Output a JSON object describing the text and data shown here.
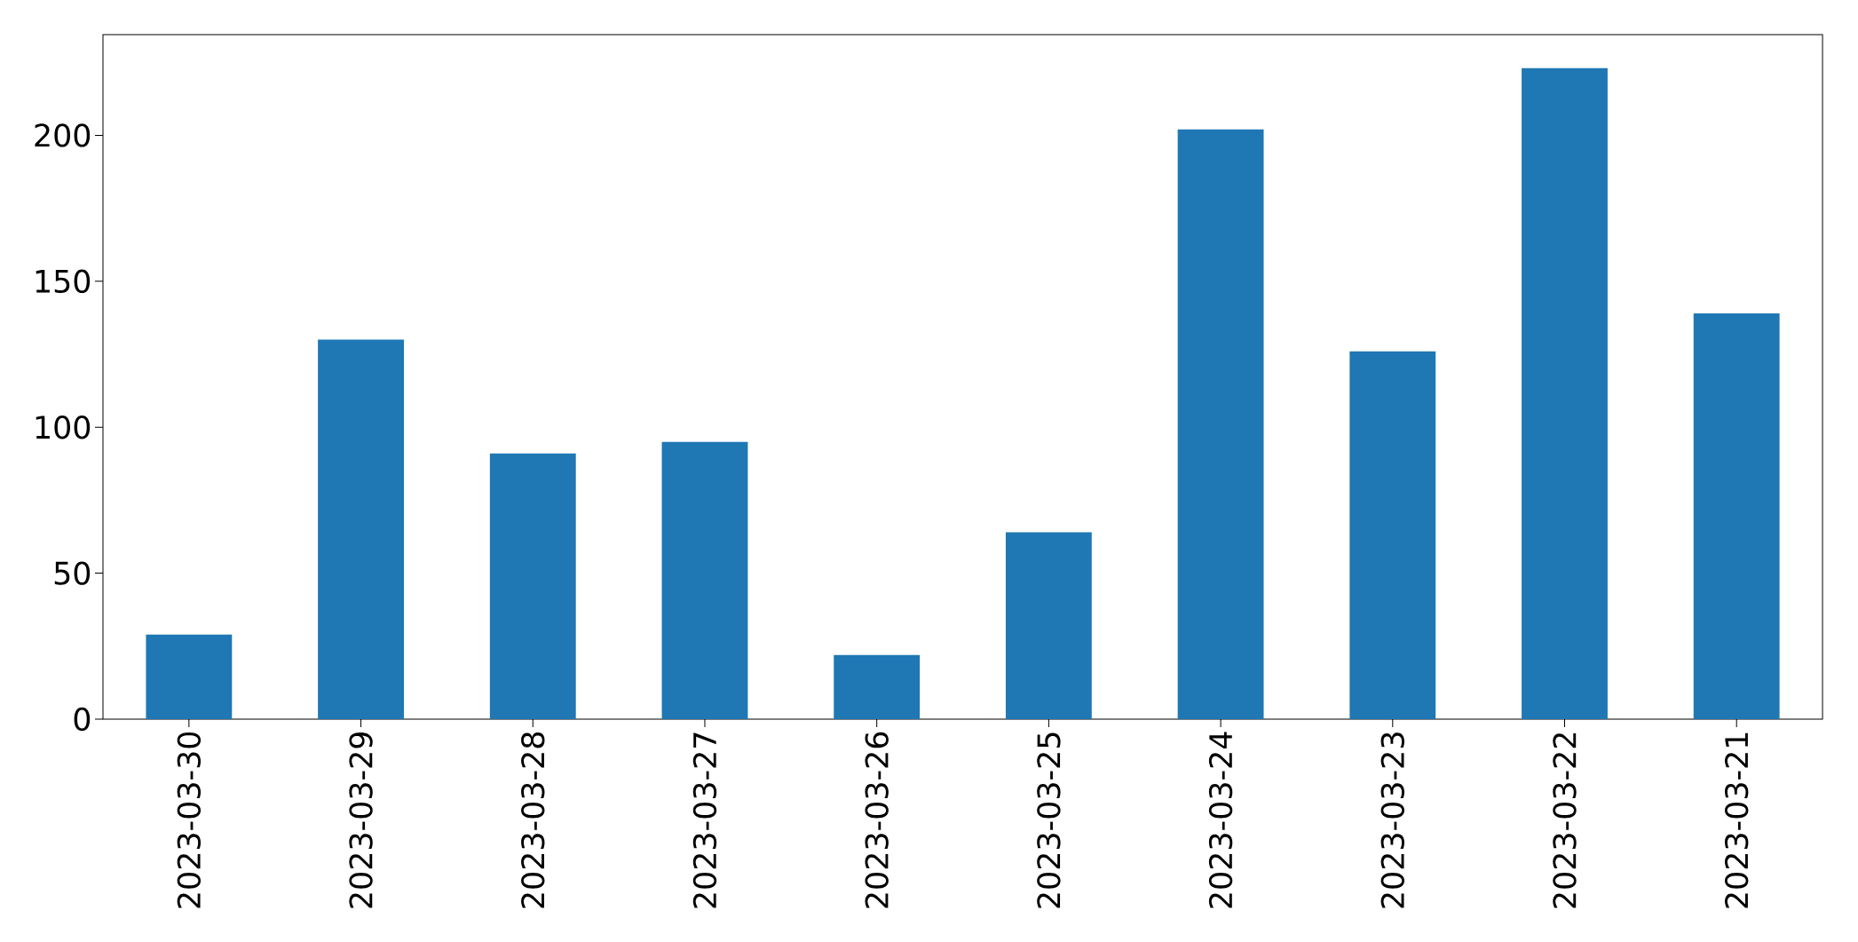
{
  "chart_data": {
    "type": "bar",
    "categories": [
      "2023-03-30",
      "2023-03-29",
      "2023-03-28",
      "2023-03-27",
      "2023-03-26",
      "2023-03-25",
      "2023-03-24",
      "2023-03-23",
      "2023-03-22",
      "2023-03-21"
    ],
    "values": [
      29,
      130,
      91,
      95,
      22,
      64,
      202,
      126,
      223,
      139
    ],
    "color": "#1f77b4",
    "ylim": [
      0,
      234.5
    ],
    "yticks": [
      0,
      50,
      100,
      150,
      200
    ],
    "grid": false
  }
}
